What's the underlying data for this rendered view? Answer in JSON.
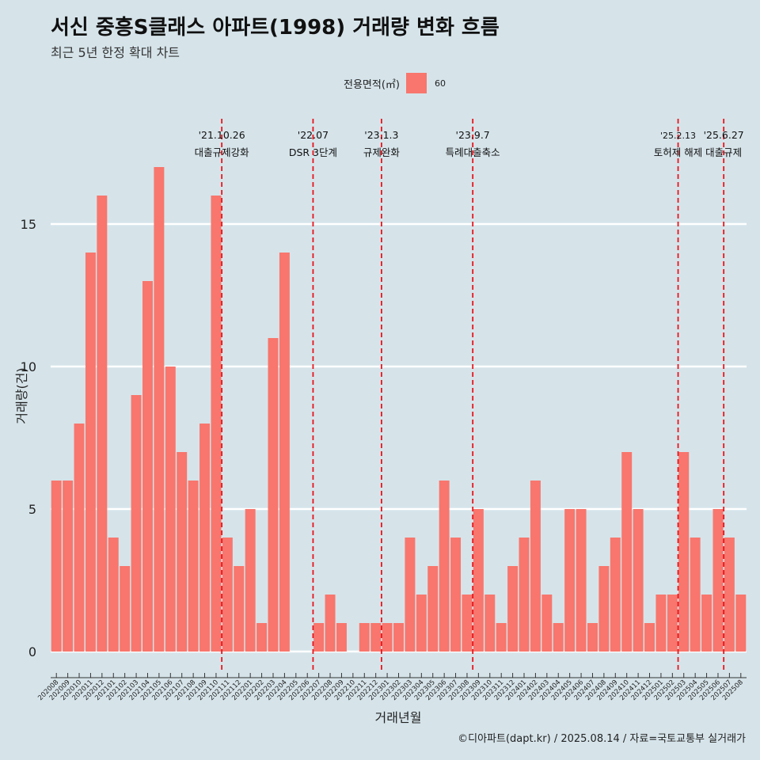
{
  "header": {
    "title": "서신 중흥S클래스 아파트(1998) 거래량 변화 흐름",
    "subtitle": "최근 5년 한정 확대 차트"
  },
  "legend": {
    "title": "전용면적(㎡)",
    "label": "60",
    "color": "#f8766d"
  },
  "caption": "©디아파트(dapt.kr) / 2025.08.14 / 자료=국토교통부 실거래가",
  "chart_data": {
    "type": "bar",
    "xlabel": "거래년월",
    "ylabel": "거래량(건)",
    "ylim": [
      0,
      18
    ],
    "yticks": [
      0,
      5,
      10,
      15
    ],
    "grid": true,
    "legend_position": "top",
    "bar_color": "#f8766d",
    "categories": [
      "202008",
      "202009",
      "202010",
      "202011",
      "202012",
      "202101",
      "202102",
      "202103",
      "202104",
      "202105",
      "202106",
      "202107",
      "202108",
      "202109",
      "202110",
      "202111",
      "202112",
      "202201",
      "202202",
      "202203",
      "202204",
      "202205",
      "202206",
      "202207",
      "202208",
      "202209",
      "202210",
      "202211",
      "202212",
      "202301",
      "202302",
      "202303",
      "202304",
      "202305",
      "202306",
      "202307",
      "202308",
      "202309",
      "202310",
      "202311",
      "202312",
      "202401",
      "202402",
      "202403",
      "202404",
      "202405",
      "202406",
      "202407",
      "202408",
      "202409",
      "202410",
      "202411",
      "202412",
      "202501",
      "202502",
      "202503",
      "202504",
      "202505",
      "202506",
      "202507",
      "202508"
    ],
    "series": [
      {
        "name": "60",
        "values": [
          6,
          6,
          8,
          14,
          16,
          4,
          3,
          9,
          13,
          17,
          10,
          7,
          6,
          8,
          16,
          4,
          3,
          5,
          1,
          11,
          14,
          0,
          0,
          1,
          2,
          1,
          0,
          1,
          1,
          1,
          1,
          4,
          2,
          3,
          6,
          4,
          2,
          5,
          2,
          1,
          3,
          4,
          6,
          2,
          1,
          5,
          5,
          1,
          3,
          4,
          7,
          5,
          1,
          2,
          2,
          7,
          4,
          2,
          5,
          4,
          2
        ]
      }
    ],
    "events": [
      {
        "date_label": "'21.10.26",
        "desc": "대출규제강화",
        "after_category": "202110"
      },
      {
        "date_label": "'22.07",
        "desc": "DSR 3단계",
        "after_category": "202206"
      },
      {
        "date_label": "'23.1.3",
        "desc": "규제완화",
        "after_category": "202212"
      },
      {
        "date_label": "'23.9.7",
        "desc": "특례대출축소",
        "after_category": "202308"
      },
      {
        "date_label": "'25.2.13",
        "desc": "토허제 해제",
        "after_category": "202502"
      },
      {
        "date_label": "'25.6.27",
        "desc": "대출규제",
        "after_category": "202506"
      }
    ]
  }
}
